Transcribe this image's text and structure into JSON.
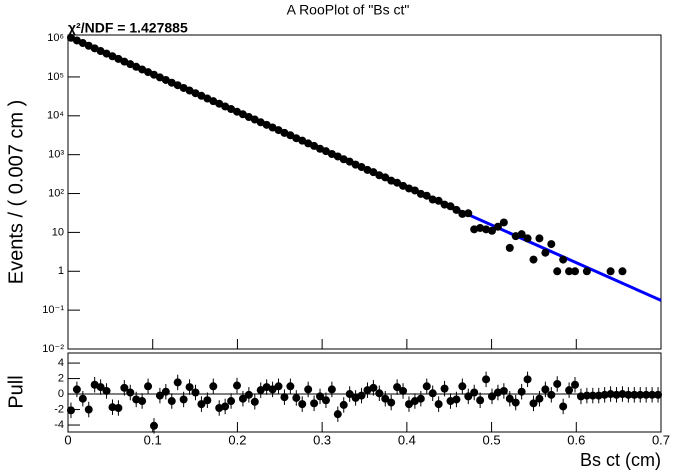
{
  "chart_data": [
    {
      "type": "scatter",
      "title": "A RooPlot of \"Bs ct\"",
      "annotation": "χ²/NDF = 1.427885",
      "y_label": "Events / ( 0.007 cm )",
      "log_y": true,
      "color": "#000000",
      "xlim": [
        0,
        0.7
      ],
      "ylim": [
        0.01,
        1200000
      ],
      "yticks": [
        {
          "value": 0.01,
          "label": "10⁻²"
        },
        {
          "value": 0.1,
          "label": "10⁻¹"
        },
        1,
        10,
        {
          "value": 100,
          "label": "10²"
        },
        {
          "value": 1000,
          "label": "10³"
        },
        {
          "value": 10000,
          "label": "10⁴"
        },
        {
          "value": 100000,
          "label": "10⁵"
        },
        {
          "value": 1000000,
          "label": "10⁶"
        }
      ],
      "x": [
        0.0035,
        0.0105,
        0.0175,
        0.0245,
        0.0315,
        0.0385,
        0.0455,
        0.0525,
        0.0595,
        0.0665,
        0.0735,
        0.0805,
        0.0875,
        0.0945,
        0.1015,
        0.1085,
        0.1155,
        0.1225,
        0.1295,
        0.1365,
        0.1435,
        0.1505,
        0.1575,
        0.1645,
        0.1715,
        0.1785,
        0.1855,
        0.1925,
        0.1995,
        0.2065,
        0.2135,
        0.2205,
        0.2275,
        0.2345,
        0.2415,
        0.2485,
        0.2555,
        0.2625,
        0.2695,
        0.2765,
        0.2835,
        0.2905,
        0.2975,
        0.3045,
        0.3115,
        0.3185,
        0.3255,
        0.3325,
        0.3395,
        0.3465,
        0.3535,
        0.3605,
        0.3675,
        0.3745,
        0.3815,
        0.3885,
        0.3955,
        0.4025,
        0.4095,
        0.4165,
        0.4235,
        0.4305,
        0.4375,
        0.4445,
        0.4515,
        0.4585,
        0.4655,
        0.4725,
        0.4795,
        0.4865,
        0.4935,
        0.5005,
        0.5075,
        0.5145,
        0.5215,
        0.5285,
        0.5355,
        0.5425,
        0.5495,
        0.5565,
        0.5635,
        0.5705,
        0.5775,
        0.5845,
        0.5915,
        0.5985,
        0.6125,
        0.6405,
        0.6545
      ],
      "values": [
        1018000,
        868000,
        744500,
        635200,
        544800,
        464300,
        398900,
        339500,
        291600,
        248300,
        213400,
        182500,
        155600,
        133200,
        114100,
        97300,
        83600,
        71100,
        61200,
        52100,
        44700,
        38100,
        32700,
        27800,
        23800,
        20500,
        17400,
        14950,
        12750,
        10950,
        9300,
        8020,
        6810,
        5860,
        4990,
        4290,
        3640,
        3150,
        2650,
        2300,
        1950,
        1680,
        1420,
        1230,
        1040,
        900,
        760,
        660,
        555,
        480,
        405,
        355,
        295,
        260,
        215,
        190,
        158,
        135,
        120,
        98,
        88,
        70,
        65,
        52,
        47,
        38,
        30,
        31,
        12,
        13,
        12,
        11,
        14,
        18,
        4,
        8,
        9,
        7,
        2,
        7,
        3,
        5,
        1,
        2,
        1,
        1,
        1,
        1,
        1
      ],
      "fit": {
        "color": "#0000ff",
        "x": [
          0,
          0.7
        ],
        "values": [
          1100000,
          0.178
        ]
      }
    },
    {
      "type": "scatter",
      "y_label": "Pull",
      "x_label": "Bs ct (cm)",
      "color": "#000000",
      "xlim": [
        0,
        0.7
      ],
      "xticks": [
        0,
        0.1,
        0.2,
        0.3,
        0.4,
        0.5,
        0.6,
        0.7
      ],
      "ylim": [
        -4.9,
        5.3
      ],
      "yticks": [
        -4,
        -2,
        0,
        2,
        4
      ],
      "error": 1,
      "x": [
        0.0035,
        0.0105,
        0.0175,
        0.0245,
        0.0315,
        0.0385,
        0.0455,
        0.0525,
        0.0595,
        0.0665,
        0.0735,
        0.0805,
        0.0875,
        0.0945,
        0.1015,
        0.1085,
        0.1155,
        0.1225,
        0.1295,
        0.1365,
        0.1435,
        0.1505,
        0.1575,
        0.1645,
        0.1715,
        0.1785,
        0.1855,
        0.1925,
        0.1995,
        0.2065,
        0.2135,
        0.2205,
        0.2275,
        0.2345,
        0.2415,
        0.2485,
        0.2555,
        0.2625,
        0.2695,
        0.2765,
        0.2835,
        0.2905,
        0.2975,
        0.3045,
        0.3115,
        0.3185,
        0.3255,
        0.3325,
        0.3395,
        0.3465,
        0.3535,
        0.3605,
        0.3675,
        0.3745,
        0.3815,
        0.3885,
        0.3955,
        0.4025,
        0.4095,
        0.4165,
        0.4235,
        0.4305,
        0.4375,
        0.4445,
        0.4515,
        0.4585,
        0.4655,
        0.4725,
        0.4795,
        0.4865,
        0.4935,
        0.5005,
        0.5075,
        0.5145,
        0.5215,
        0.5285,
        0.5355,
        0.5425,
        0.5495,
        0.5565,
        0.5635,
        0.5705,
        0.5775,
        0.5845,
        0.5915,
        0.5985,
        0.6055,
        0.6125,
        0.6195,
        0.6265,
        0.6335,
        0.6405,
        0.6475,
        0.6545,
        0.6615,
        0.6685,
        0.6755,
        0.6825,
        0.6895,
        0.6965
      ],
      "values": [
        -2.1,
        0.6,
        -0.6,
        -2.0,
        1.2,
        0.9,
        0.4,
        -1.7,
        -1.8,
        0.8,
        0.2,
        -0.7,
        -0.9,
        1.0,
        -4.1,
        -0.2,
        0.3,
        -0.9,
        1.5,
        -0.7,
        0.9,
        0.2,
        -1.3,
        -0.8,
        1.0,
        -1.8,
        -1.6,
        -0.9,
        1.1,
        -0.6,
        -0.1,
        -1.0,
        0.5,
        0.9,
        0.6,
        1.0,
        -0.4,
        1.0,
        -0.5,
        -1.3,
        0.6,
        -1.2,
        -0.3,
        -0.8,
        0.6,
        -2.6,
        -1.4,
        0.0,
        -0.5,
        -0.2,
        0.5,
        0.8,
        0.1,
        -0.6,
        -1.1,
        0.9,
        0.4,
        -1.3,
        -0.9,
        -0.6,
        1.0,
        0.1,
        -1.3,
        0.7,
        -0.9,
        -0.7,
        1.0,
        -0.3,
        0.2,
        -0.8,
        1.9,
        -0.3,
        0.2,
        0.4,
        -0.6,
        -1.1,
        0.3,
        1.9,
        -1.2,
        -0.6,
        0.6,
        -0.1,
        1.3,
        -1.6,
        0.5,
        1.2,
        -0.3,
        -0.2,
        -0.2,
        -0.2,
        -0.1,
        0.0,
        -0.1,
        0.0,
        -0.1,
        -0.1,
        -0.1,
        -0.1,
        -0.1,
        -0.1
      ]
    }
  ]
}
